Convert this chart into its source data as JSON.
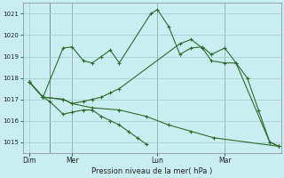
{
  "background_color": "#c8eef0",
  "grid_color": "#a0ccc8",
  "line_color": "#2d6a2d",
  "xlabel": "Pression niveau de la mer( hPa )",
  "ylim": [
    1014.5,
    1021.5
  ],
  "yticks": [
    1015,
    1016,
    1017,
    1018,
    1019,
    1020,
    1021
  ],
  "xlim": [
    0,
    11.5
  ],
  "x_tick_labels": [
    "Dim",
    "Mer",
    "Lun",
    "Mar"
  ],
  "x_tick_positions": [
    0.3,
    2.2,
    6.0,
    9.0
  ],
  "x_vlines": [
    1.2,
    2.2,
    6.0,
    9.0
  ],
  "series": [
    [
      1017.8,
      1017.1,
      1019.4,
      1019.45,
      1018.8,
      1018.7,
      1019.0,
      1019.3,
      1018.7,
      1021.0,
      1021.2,
      1020.4,
      1019.1,
      1019.4,
      1019.45,
      1019.1,
      1019.4,
      1018.7,
      1018.0,
      1016.5,
      1015.0,
      1014.8
    ],
    [
      1017.8,
      1017.1,
      1017.0,
      1016.8,
      1016.9,
      1017.0,
      1017.1,
      1017.3,
      1017.5,
      1019.6,
      1019.8,
      1019.4,
      1018.8,
      1018.7,
      1018.7,
      1015.0,
      1014.8
    ],
    [
      1017.8,
      1017.1,
      1016.9,
      1016.3,
      1016.4,
      1016.5,
      1016.5,
      1016.2,
      1016.0,
      1015.8,
      1015.5,
      1015.2,
      1014.9
    ],
    [
      1017.8,
      1017.1,
      1017.0,
      1016.8,
      1016.6,
      1016.5,
      1016.2,
      1015.8,
      1015.5,
      1015.2,
      1014.8
    ]
  ],
  "series_x": [
    [
      0.3,
      0.9,
      1.8,
      2.2,
      2.7,
      3.1,
      3.5,
      3.9,
      4.3,
      5.7,
      6.0,
      6.5,
      7.0,
      7.5,
      8.0,
      8.4,
      9.0,
      9.5,
      10.0,
      10.5,
      11.0,
      11.4
    ],
    [
      0.3,
      0.9,
      1.8,
      2.2,
      2.7,
      3.1,
      3.5,
      3.9,
      4.3,
      7.0,
      7.5,
      8.0,
      8.4,
      9.0,
      9.5,
      11.0,
      11.4
    ],
    [
      0.3,
      0.9,
      1.2,
      1.8,
      2.2,
      2.7,
      3.1,
      3.5,
      3.9,
      4.3,
      4.7,
      5.1,
      5.5
    ],
    [
      0.3,
      0.9,
      1.8,
      2.2,
      3.1,
      4.3,
      5.5,
      6.5,
      7.5,
      8.5,
      11.4
    ]
  ]
}
